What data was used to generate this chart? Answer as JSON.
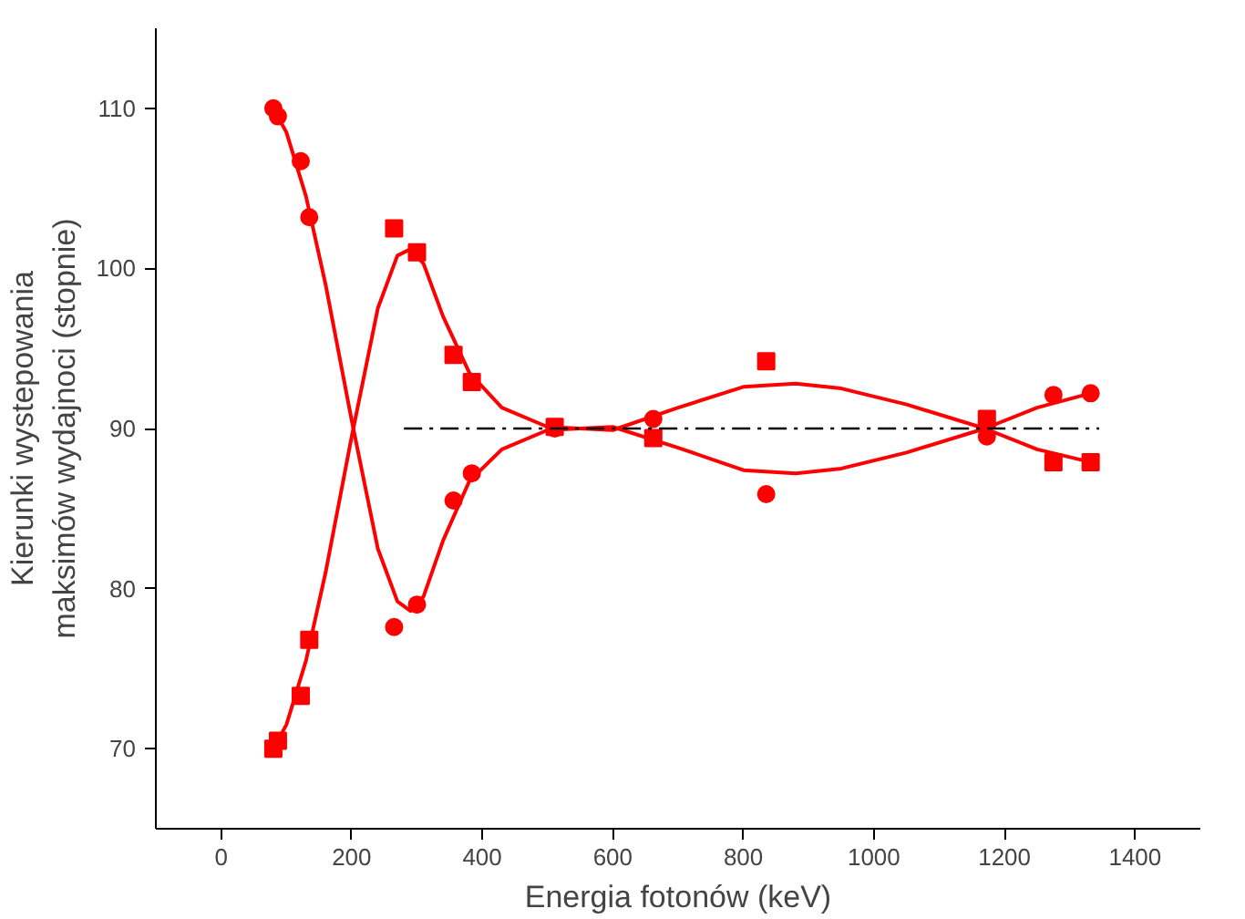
{
  "chart_data": {
    "type": "scatter",
    "xlabel": "Energia fotonów (keV)",
    "ylabel": "Kierunki wystepowania\nmaksimów wydajnoci (stopnie)",
    "xlim": [
      -100,
      1500
    ],
    "ylim": [
      65,
      115
    ],
    "xticks": [
      0,
      200,
      400,
      600,
      800,
      1000,
      1200,
      1400
    ],
    "yticks": [
      70,
      80,
      90,
      100,
      110
    ],
    "grid": false,
    "series": [
      {
        "marker": "circle",
        "color": "#ff0000",
        "x": [
          80,
          87,
          122,
          135,
          265,
          300,
          356,
          384,
          511,
          662,
          835,
          1173,
          1275,
          1332
        ],
        "values": [
          110,
          109.5,
          106.7,
          103.2,
          77.6,
          79,
          85.5,
          87.2,
          90,
          90.6,
          85.9,
          89.5,
          92.1,
          92.2
        ]
      },
      {
        "marker": "square",
        "color": "#ff0000",
        "x": [
          80,
          87,
          122,
          135,
          265,
          300,
          356,
          384,
          511,
          662,
          835,
          1173,
          1275,
          1332
        ],
        "values": [
          70,
          70.5,
          73.3,
          76.8,
          102.5,
          101,
          94.6,
          92.9,
          90.1,
          89.4,
          94.2,
          90.6,
          87.9,
          87.9
        ]
      },
      {
        "type": "line",
        "marker": "none",
        "line_style": "solid",
        "color": "#ff0000",
        "x": [
          80,
          100,
          130,
          160,
          200,
          240,
          270,
          290,
          310,
          340,
          380,
          430,
          500,
          600,
          700,
          800,
          880,
          950,
          1050,
          1170,
          1250,
          1332
        ],
        "values": [
          110,
          108.5,
          104.5,
          99,
          90.5,
          82.5,
          79.2,
          78.6,
          79.5,
          83,
          86.7,
          88.7,
          89.9,
          90.1,
          88.8,
          87.4,
          87.2,
          87.5,
          88.5,
          90,
          91.3,
          92.2
        ]
      },
      {
        "type": "line",
        "marker": "none",
        "line_style": "solid",
        "color": "#ff0000",
        "x": [
          80,
          100,
          130,
          160,
          200,
          240,
          270,
          290,
          310,
          340,
          380,
          430,
          500,
          600,
          700,
          800,
          880,
          950,
          1050,
          1170,
          1250,
          1332
        ],
        "values": [
          70,
          71.5,
          75.5,
          81,
          89.5,
          97.5,
          100.8,
          101.2,
          100.3,
          97,
          93.5,
          91.3,
          90.1,
          89.9,
          91.3,
          92.6,
          92.8,
          92.5,
          91.5,
          90,
          88.7,
          87.9
        ]
      },
      {
        "type": "line",
        "marker": "none",
        "line_style": "dashed",
        "color": "#000000",
        "x": [
          280,
          1345
        ],
        "values": [
          90,
          90
        ]
      }
    ]
  }
}
